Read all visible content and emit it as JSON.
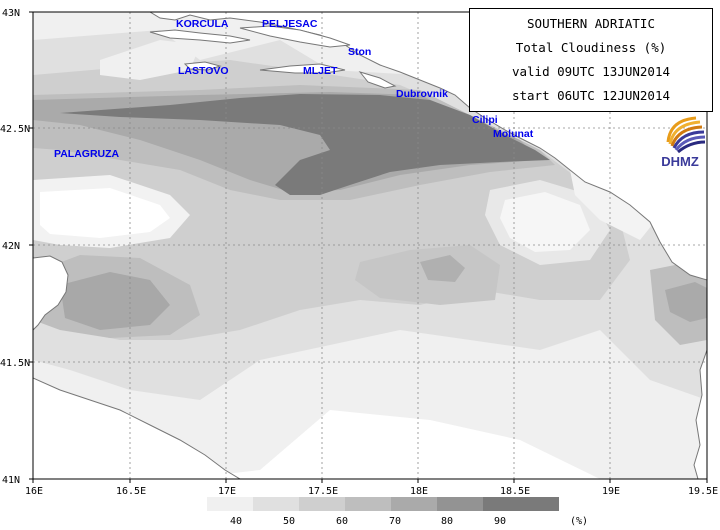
{
  "title": {
    "line1": "SOUTHERN ADRIATIC",
    "line2": "Total Cloudiness (%)",
    "line3": "valid 09UTC 13JUN2014",
    "line4": "start 06UTC 12JUN2014"
  },
  "logo": {
    "text": "DHMZ",
    "icon": "dhmz-swirl-logo"
  },
  "lat_ticks": [
    "43N",
    "42.5N",
    "42N",
    "41.5N",
    "41N"
  ],
  "lon_ticks": [
    "16E",
    "16.5E",
    "17E",
    "17.5E",
    "18E",
    "18.5E",
    "19E",
    "19.5E"
  ],
  "places": {
    "korcula": "KORCULA",
    "peljesac": "PELJESAC",
    "ston": "Ston",
    "lastovo": "LASTOVO",
    "mljet": "MLJET",
    "dubrovnik": "Dubrovnik",
    "palagruza": "PALAGRUZA",
    "cilipi": "Cilipi",
    "molunat": "Molunat"
  },
  "legend": {
    "unit": "(%)",
    "levels": [
      "40",
      "50",
      "60",
      "70",
      "80",
      "90"
    ],
    "colors": [
      "#f0f0f0",
      "#e0e0e0",
      "#cfcfcf",
      "#bebebe",
      "#aaaaaa",
      "#939393",
      "#7a7a7a"
    ]
  },
  "colors": {
    "land": "#ffffff",
    "coastline": "#777777",
    "grid": "#9a9a9a",
    "label_blue": "#0000ee"
  }
}
